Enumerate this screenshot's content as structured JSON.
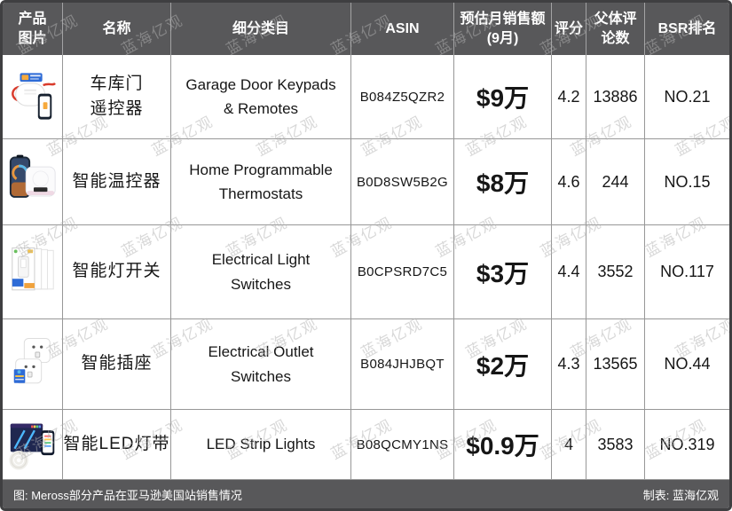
{
  "watermark": {
    "text": "蓝海亿观"
  },
  "theme": {
    "header_bg": "#58585a",
    "outer_border": "#3f3f41",
    "grid_line": "#979797",
    "accent_blue": "#2e6bd6"
  },
  "footer": {
    "caption": "图: Meross部分产品在亚马逊美国站销售情况",
    "credit": "制表: 蓝海亿观"
  },
  "chart_data": {
    "type": "table",
    "title": "Meross部分产品在亚马逊美国站销售情况",
    "columns": [
      {
        "id": "image",
        "lines": [
          "产品",
          "图片"
        ]
      },
      {
        "id": "name",
        "lines": [
          "名称"
        ]
      },
      {
        "id": "category",
        "lines": [
          "细分类目"
        ]
      },
      {
        "id": "asin",
        "lines": [
          "ASIN"
        ]
      },
      {
        "id": "sales",
        "lines": [
          "预估月销售额",
          "(9月)"
        ]
      },
      {
        "id": "rating",
        "lines": [
          "评分"
        ]
      },
      {
        "id": "reviews",
        "lines": [
          "父体评",
          "论数"
        ]
      },
      {
        "id": "bsr",
        "lines": [
          "BSR排名"
        ]
      }
    ],
    "rows": [
      {
        "image": "garage-door-opener",
        "name_lines": [
          "车库门",
          "遥控器"
        ],
        "category": "Garage Door Keypads & Remotes",
        "asin": "B084Z5QZR2",
        "sales": "$9万",
        "rating": "4.2",
        "reviews": "13886",
        "bsr": "NO.21"
      },
      {
        "image": "smart-thermostat",
        "name_lines": [
          "智能温控器"
        ],
        "category": "Home Programmable Thermostats",
        "asin": "B0D8SW5B2G",
        "sales": "$8万",
        "rating": "4.6",
        "reviews": "244",
        "bsr": "NO.15"
      },
      {
        "image": "smart-light-switch",
        "name_lines": [
          "智能灯开关"
        ],
        "category": "Electrical Light Switches",
        "asin": "B0CPSRD7C5",
        "sales": "$3万",
        "rating": "4.4",
        "reviews": "3552",
        "bsr": "NO.117"
      },
      {
        "image": "smart-plug",
        "name_lines": [
          "智能插座"
        ],
        "category": "Electrical Outlet Switches",
        "asin": "B084JHJBQT",
        "sales": "$2万",
        "rating": "4.3",
        "reviews": "13565",
        "bsr": "NO.44"
      },
      {
        "image": "led-strip-lights",
        "name_lines": [
          "智能LED灯带"
        ],
        "category": "LED Strip Lights",
        "asin": "B08QCMY1NS",
        "sales": "$0.9万",
        "rating": "4",
        "reviews": "3583",
        "bsr": "NO.319"
      }
    ]
  }
}
